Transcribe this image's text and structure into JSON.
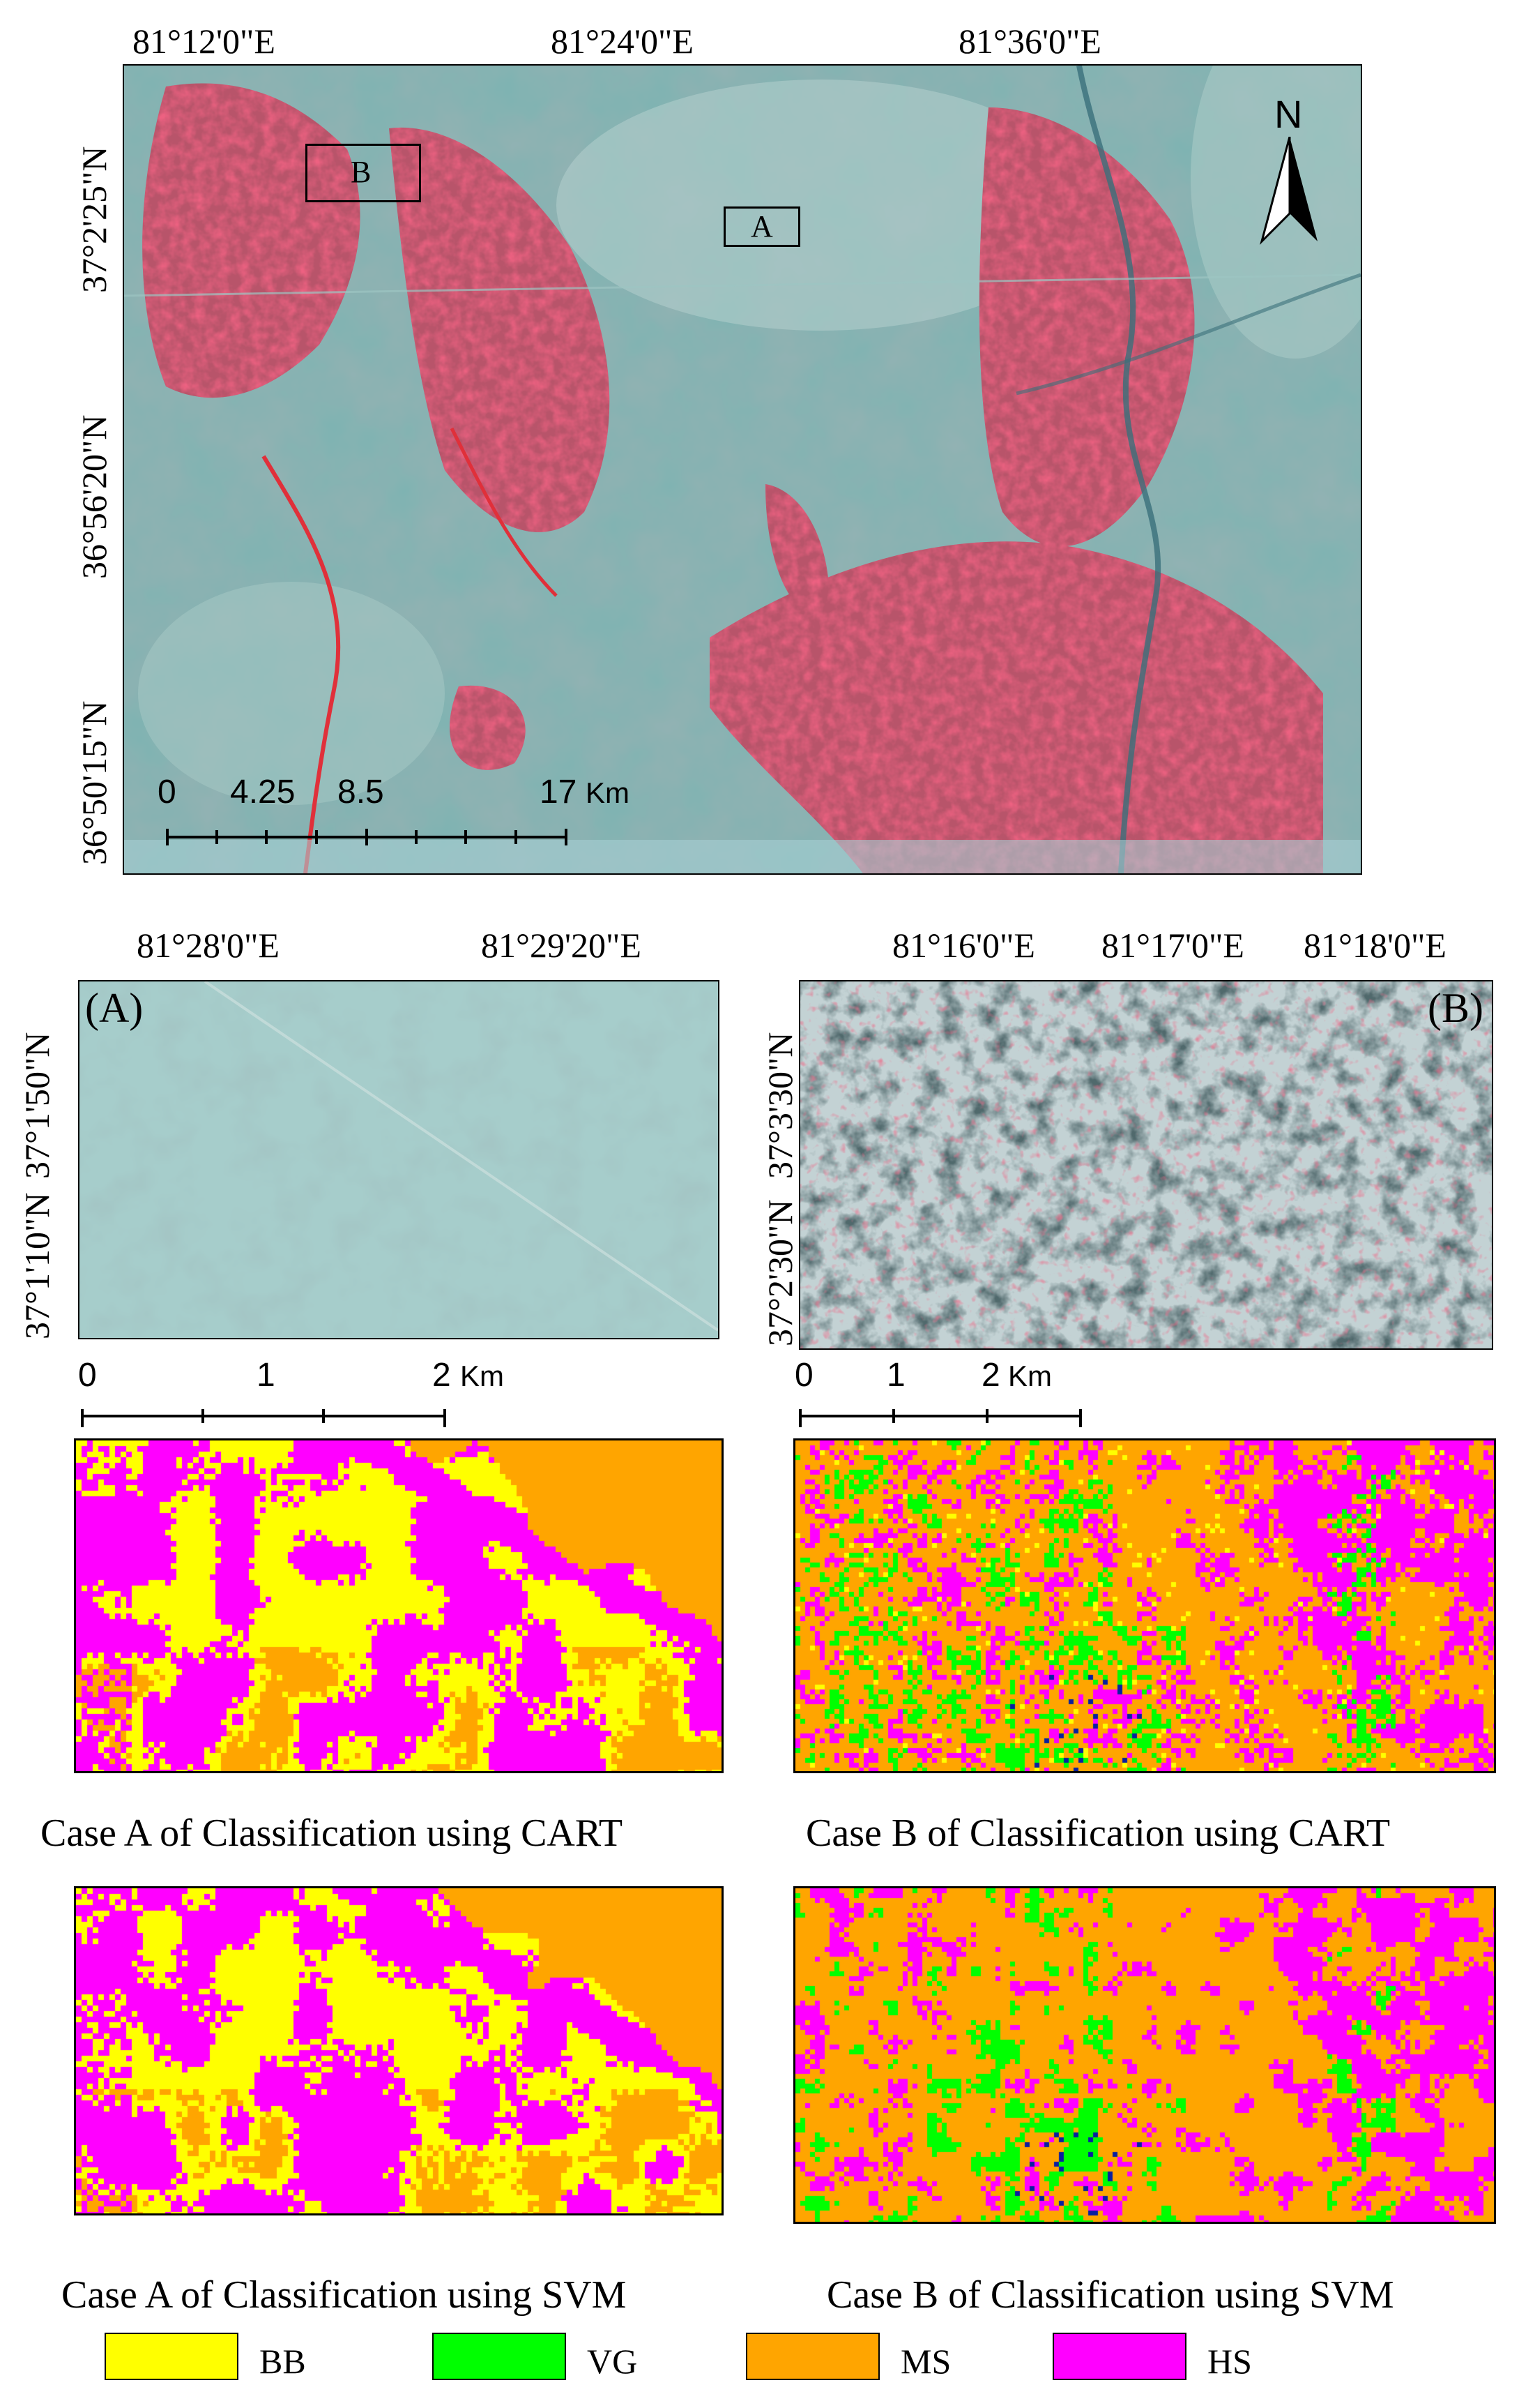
{
  "main_map": {
    "top_labels": [
      "81°12'0\"E",
      "81°24'0\"E",
      "81°36'0\"E"
    ],
    "left_labels": [
      "37°2'25\"N",
      "36°56'20\"N",
      "36°50'15\"N"
    ],
    "box_labels": [
      "B",
      "A"
    ],
    "north_label": "N",
    "scale_labels": [
      "0",
      "4.25",
      "8.5",
      "17",
      "Km"
    ]
  },
  "inset_a": {
    "panel_label": "(A)",
    "top_labels": [
      "81°28'0\"E",
      "81°29'20\"E"
    ],
    "left_labels": [
      "37°1'50\"N",
      "37°1'10\"N"
    ],
    "scale_labels": [
      "0",
      "1",
      "2",
      "Km"
    ]
  },
  "inset_b": {
    "panel_label": "(B)",
    "top_labels": [
      "81°16'0\"E",
      "81°17'0\"E",
      "81°18'0\"E"
    ],
    "left_labels": [
      "37°3'30\"N",
      "37°2'30\"N"
    ],
    "scale_labels": [
      "0",
      "1",
      "2",
      "Km"
    ]
  },
  "captions": {
    "a_cart": "Case A of Classification using CART",
    "b_cart": "Case B of Classification using CART",
    "a_svm": "Case A of Classification using SVM",
    "b_svm": "Case B of Classification using SVM"
  },
  "legend": [
    {
      "label": "BB",
      "color": "#ffff00"
    },
    {
      "label": "VG",
      "color": "#00ff00"
    },
    {
      "label": "MS",
      "color": "#ffa500"
    },
    {
      "label": "HS",
      "color": "#ff00ff"
    }
  ],
  "colors": {
    "bb": "#ffff00",
    "vg": "#00ff00",
    "ms": "#ffa500",
    "hs": "#ff00ff",
    "water": "#0a1fa0"
  }
}
